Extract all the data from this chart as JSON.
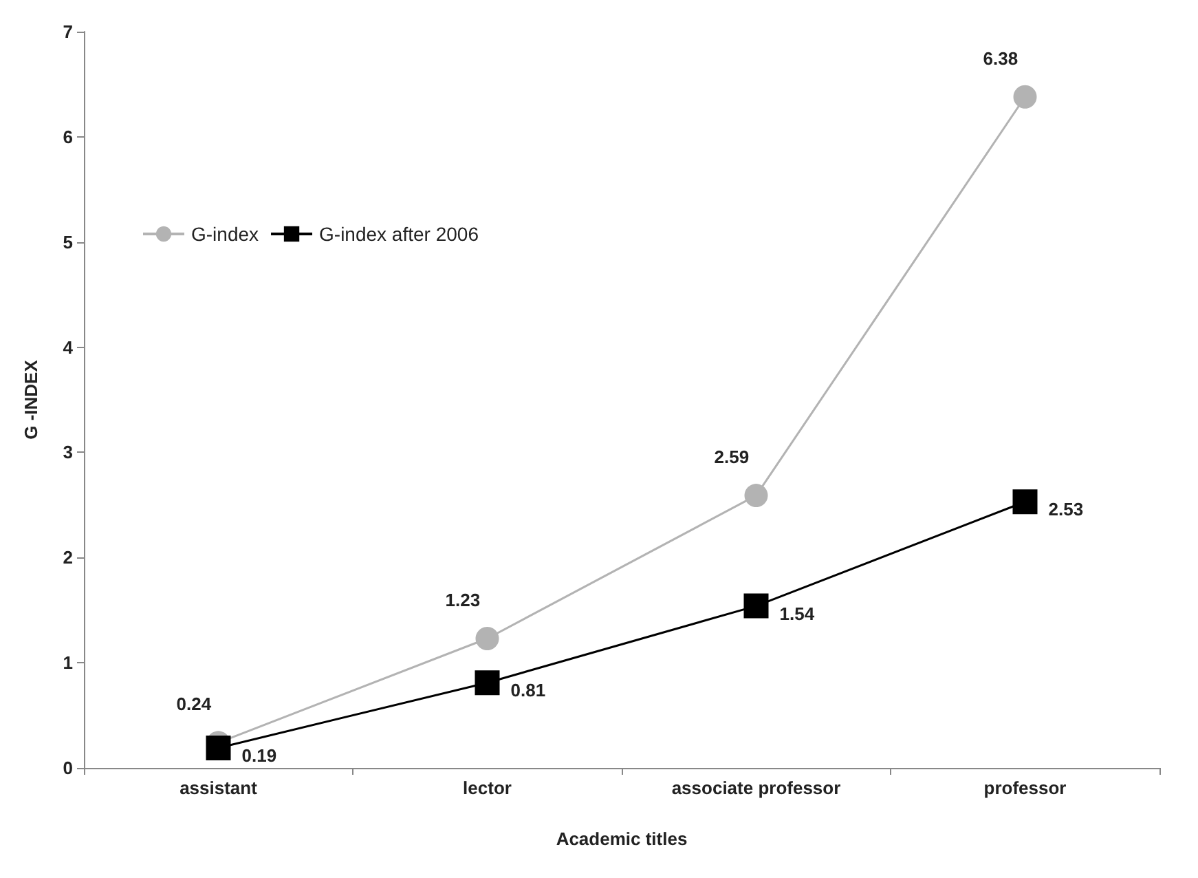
{
  "chart_data": {
    "type": "line",
    "xlabel": "Academic titles",
    "ylabel": "G -INDEX",
    "categories": [
      "assistant",
      "lector",
      "associate professor",
      "professor"
    ],
    "series": [
      {
        "name": "G-index",
        "color": "#b3b3b3",
        "marker": "circle",
        "values": [
          0.24,
          1.23,
          2.59,
          6.38
        ]
      },
      {
        "name": "G-index after 2006",
        "color": "#000000",
        "marker": "square",
        "values": [
          0.19,
          0.81,
          1.54,
          2.53
        ]
      }
    ],
    "ylim": [
      0,
      7
    ],
    "yticks": [
      0,
      1,
      2,
      3,
      4,
      5,
      6,
      7
    ],
    "grid": false,
    "legend": "top left",
    "data_labels": true
  }
}
